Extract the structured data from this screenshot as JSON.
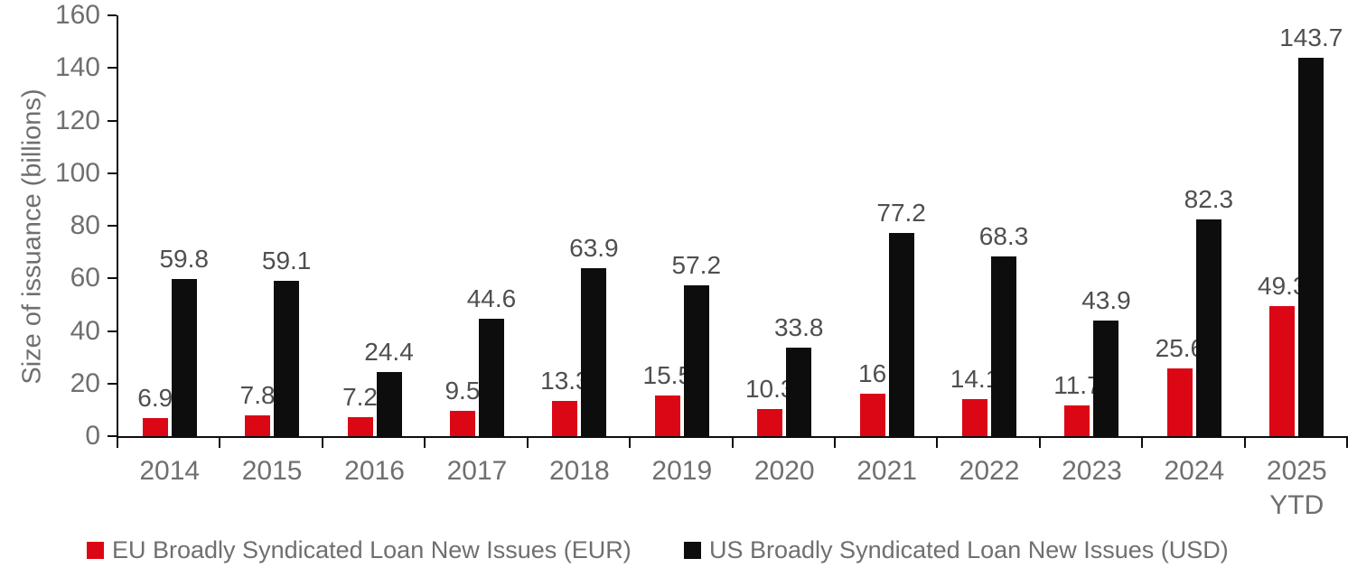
{
  "chart_data": {
    "type": "bar",
    "title": "",
    "xlabel": "",
    "ylabel": "Size of issuance (billions)",
    "ylim": [
      0,
      160
    ],
    "yticks": [
      0,
      20,
      40,
      60,
      80,
      100,
      120,
      140,
      160
    ],
    "grid": false,
    "legend_position": "bottom",
    "data_labels": true,
    "categories": [
      "2014",
      "2015",
      "2016",
      "2017",
      "2018",
      "2019",
      "2020",
      "2021",
      "2022",
      "2023",
      "2024",
      "2025\nYTD"
    ],
    "series": [
      {
        "id": "eu",
        "name": "EU Broadly Syndicated Loan New Issues (EUR)",
        "color": "#dc0714",
        "values": [
          6.9,
          7.8,
          7.2,
          9.5,
          13.3,
          15.5,
          10.3,
          16,
          14.1,
          11.7,
          25.6,
          49.3
        ]
      },
      {
        "id": "us",
        "name": "US Broadly Syndicated Loan New Issues (USD)",
        "color": "#0d0d0d",
        "values": [
          59.8,
          59.1,
          24.4,
          44.6,
          63.9,
          57.2,
          33.8,
          77.2,
          68.3,
          43.9,
          82.3,
          143.7
        ]
      }
    ],
    "colors": {
      "axis_line": "#0d0d0d",
      "tick_text": "#6f6f6f",
      "data_label_text": "#4f4f4f"
    }
  }
}
